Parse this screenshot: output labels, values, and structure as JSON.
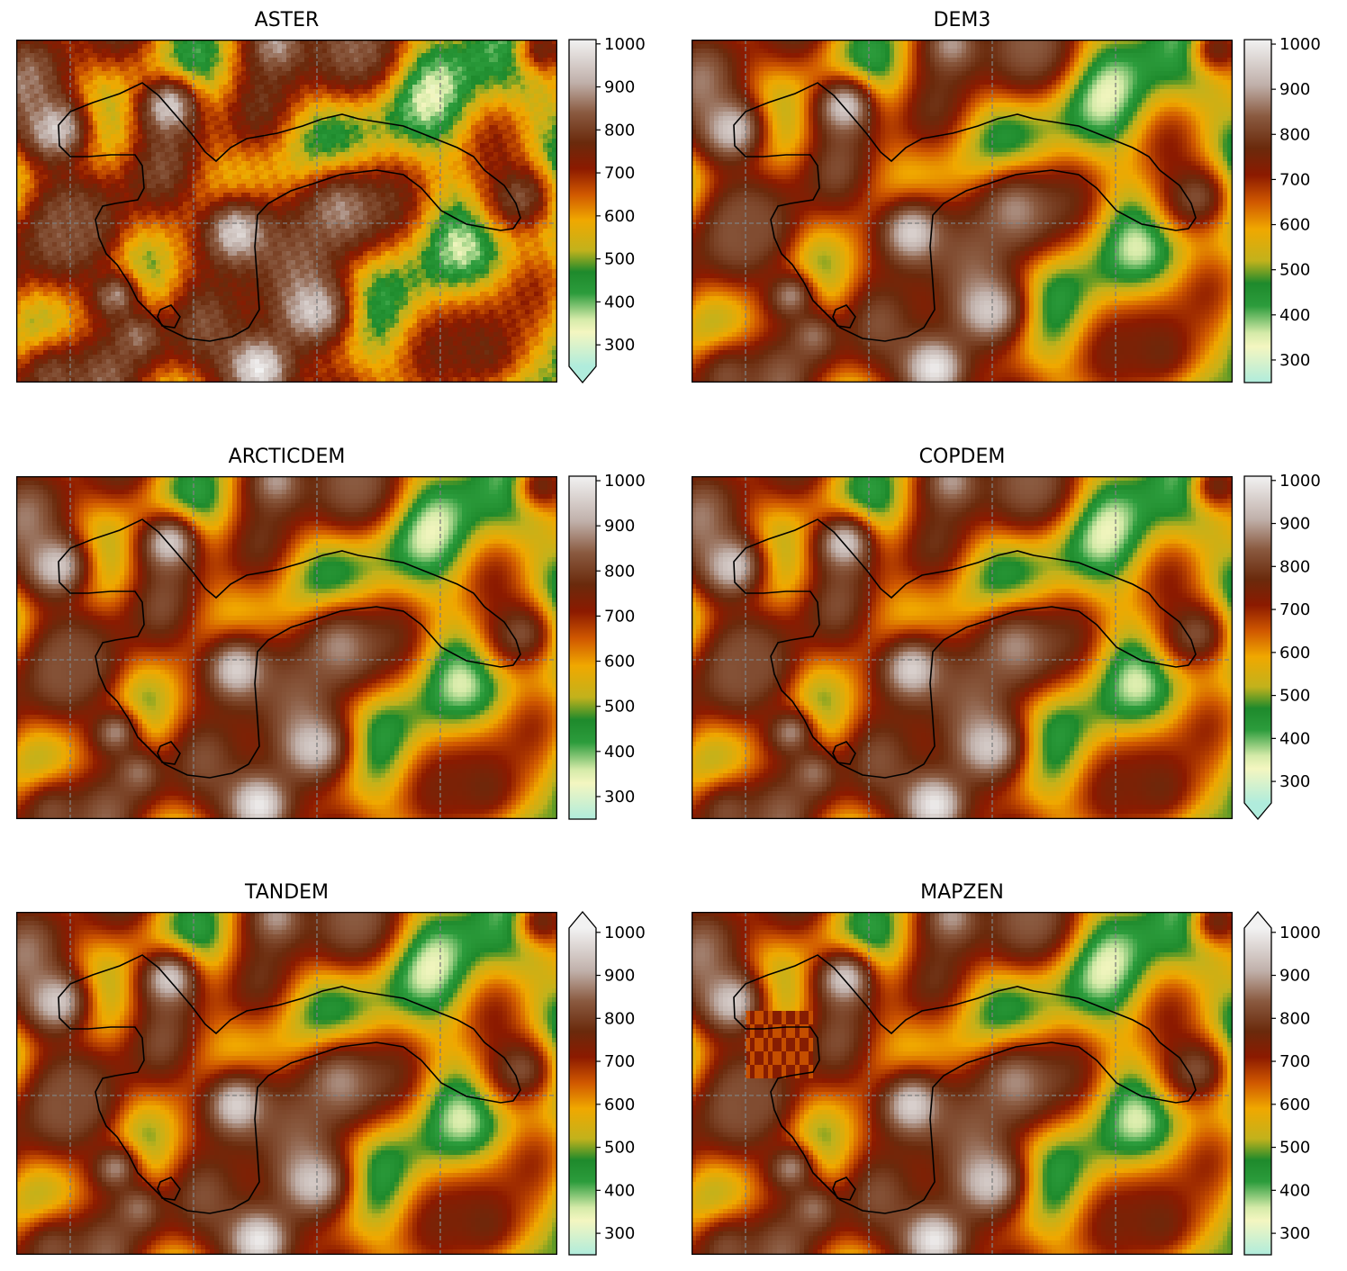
{
  "chart_data": {
    "type": "heatmap",
    "layout": "3x2 panel grid",
    "colorbar": {
      "colormap": "terrain-like (pale cyan → pale yellow → green → orange → dark red-brown → brown → white)",
      "range": [
        250,
        1010
      ],
      "ticks": [
        300,
        400,
        500,
        600,
        700,
        800,
        900,
        1000
      ],
      "tick_labels": [
        "300",
        "400",
        "500",
        "600",
        "700",
        "800",
        "900",
        "1000"
      ],
      "stops": [
        {
          "value": 250,
          "color": "#b0ecdc"
        },
        {
          "value": 330,
          "color": "#f4f6c0"
        },
        {
          "value": 360,
          "color": "#d4eaa8"
        },
        {
          "value": 420,
          "color": "#2c9c3c"
        },
        {
          "value": 470,
          "color": "#1e8a2c"
        },
        {
          "value": 520,
          "color": "#c2b21c"
        },
        {
          "value": 590,
          "color": "#f0a800"
        },
        {
          "value": 650,
          "color": "#d05800"
        },
        {
          "value": 710,
          "color": "#8c1a00"
        },
        {
          "value": 770,
          "color": "#6a2a0c"
        },
        {
          "value": 840,
          "color": "#8a5a40"
        },
        {
          "value": 910,
          "color": "#c0b0aa"
        },
        {
          "value": 1010,
          "color": "#f2f2f2"
        }
      ]
    },
    "gridlines": {
      "style": "dashed",
      "color": "#808080",
      "vertical": 4,
      "horizontal": 1
    },
    "outline_color": "#000000",
    "panels": [
      {
        "title": "ASTER",
        "extend": "min",
        "variant": "aster"
      },
      {
        "title": "DEM3",
        "extend": "neither",
        "variant": "smooth"
      },
      {
        "title": "ARCTICDEM",
        "extend": "neither",
        "variant": "smooth"
      },
      {
        "title": "COPDEM",
        "extend": "min",
        "variant": "smooth"
      },
      {
        "title": "TANDEM",
        "extend": "max",
        "variant": "smooth"
      },
      {
        "title": "MAPZEN",
        "extend": "max",
        "variant": "mapzen"
      }
    ]
  }
}
